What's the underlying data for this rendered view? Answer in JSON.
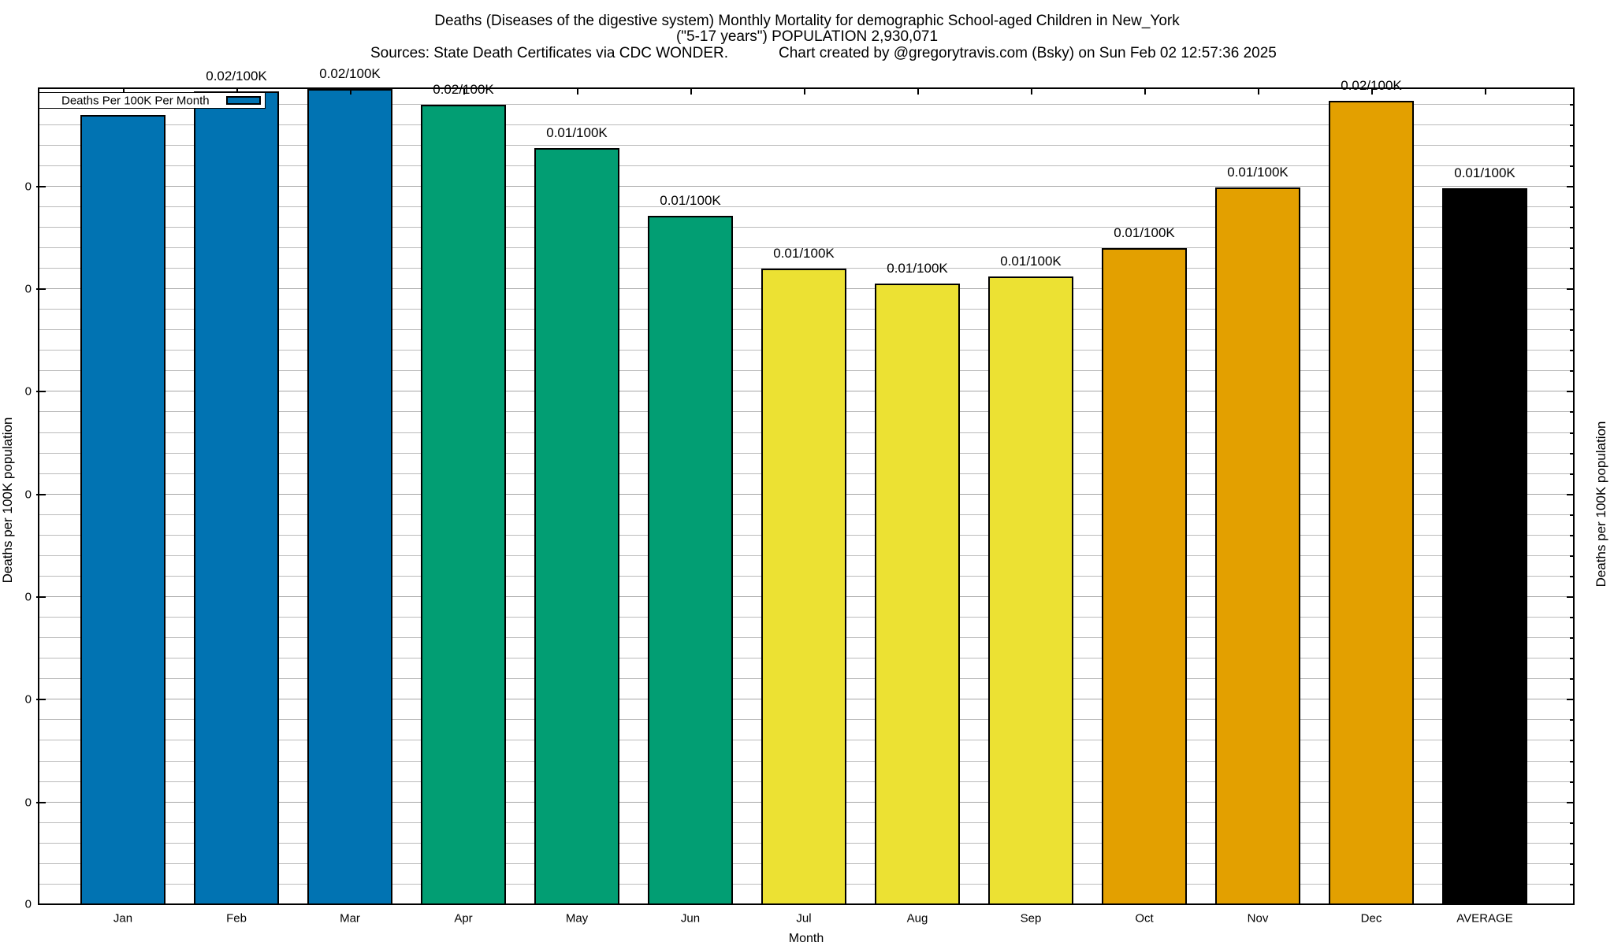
{
  "title": {
    "line1": "Deaths (Diseases of the digestive system) Monthly Mortality for demographic School-aged Children in New_York",
    "line2": "(\"5-17 years\") POPULATION 2,930,071",
    "source_note": "Sources: State Death Certificates via CDC WONDER.",
    "credit_note": "Chart created by @gregorytravis.com (Bsky) on Sun Feb 02 12:57:36 2025"
  },
  "legend": {
    "label": "Deaths Per 100K Per Month",
    "position": "top-left",
    "swatch_color": "#0173b2"
  },
  "axes": {
    "x_label": "Month",
    "y_left_label": "Deaths per 100K population",
    "y_right_label": "Deaths per 100K population",
    "y_tick_label_text": "0"
  },
  "colors": {
    "q1_blue": "#0173b2",
    "q2_green": "#029e73",
    "q3_yellow": "#ece133",
    "q4_orange": "#e3a000",
    "average_black": "#000000",
    "grid_minor": "#bbbbbb",
    "grid_major": "#a6a6a6",
    "background": "#ffffff"
  },
  "chart_data": {
    "type": "bar",
    "title": "Deaths (Diseases of the digestive system) Monthly Mortality for demographic School-aged Children in New_York (\"5-17 years\") POPULATION 2,930,071",
    "xlabel": "Month",
    "ylabel": "Deaths per 100K population",
    "y2label": "Deaths per 100K population",
    "categories": [
      "Jan",
      "Feb",
      "Mar",
      "Apr",
      "May",
      "Jun",
      "Jul",
      "Aug",
      "Sep",
      "Oct",
      "Nov",
      "Dec",
      "AVERAGE"
    ],
    "values": [
      0.01538,
      0.01584,
      0.01589,
      0.01558,
      0.01473,
      0.01341,
      0.01239,
      0.01209,
      0.01223,
      0.01279,
      0.01397,
      0.01566,
      0.01395
    ],
    "bar_value_labels": [
      "0.02/100K",
      "0.02/100K",
      "0.02/100K",
      "0.02/100K",
      "0.01/100K",
      "0.01/100K",
      "0.01/100K",
      "0.01/100K",
      "0.01/100K",
      "0.01/100K",
      "0.01/100K",
      "0.02/100K",
      "0.01/100K"
    ],
    "bar_colors": [
      "#0173b2",
      "#0173b2",
      "#0173b2",
      "#029e73",
      "#029e73",
      "#029e73",
      "#ece133",
      "#ece133",
      "#ece133",
      "#e3a000",
      "#e3a000",
      "#e3a000",
      "#000000"
    ],
    "ylim": [
      0,
      0.0159
    ],
    "y_major_tick_step": 0.002,
    "y_minor_tick_step": 0.0004,
    "y_tick_label_text": "0",
    "grid": true,
    "legend_position": "top-left"
  }
}
